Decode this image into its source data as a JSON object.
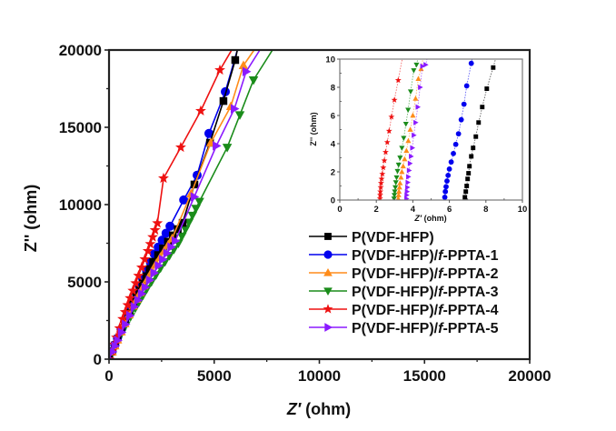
{
  "chart_data": [
    {
      "type": "line",
      "title": "",
      "xlabel_main": "Z",
      "xlabel_prime": "′",
      "xlabel_unit": " (ohm)",
      "ylabel": "Z'' (ohm)",
      "xlim": [
        0,
        20000
      ],
      "ylim": [
        0,
        20000
      ],
      "xticks": [
        0,
        5000,
        10000,
        15000,
        20000
      ],
      "yticks": [
        0,
        5000,
        10000,
        15000,
        20000
      ],
      "xtick_labels": [
        "0",
        "5000",
        "10000",
        "15000",
        "20000"
      ],
      "ytick_labels": [
        "0",
        "5000",
        "10000",
        "15000",
        "20000"
      ],
      "grid": false,
      "legend_position": "center-right",
      "series": [
        {
          "name": "P(VDF-HFP)",
          "name_prefix": "P(VDF-HFP)",
          "name_italic": "",
          "name_suffix": "",
          "color": "#000000",
          "marker": "square",
          "x": [
            0,
            150,
            400,
            750,
            1150,
            1600,
            2100,
            2800,
            3500,
            4060,
            4800,
            5440,
            6000,
            6100
          ],
          "y": [
            0,
            500,
            1300,
            2400,
            3600,
            4900,
            6300,
            7600,
            8820,
            11300,
            14000,
            16700,
            19350,
            20000
          ]
        },
        {
          "name": "P(VDF-HFP)/f-PPTA-1",
          "name_prefix": "P(VDF-HFP)/",
          "name_italic": "f",
          "name_suffix": "-PPTA-1",
          "color": "#0000ee",
          "marker": "circle",
          "x": [
            0,
            150,
            400,
            750,
            1150,
            1600,
            2150,
            2900,
            3550,
            4190,
            4750,
            5530,
            6090
          ],
          "y": [
            0,
            500,
            1350,
            2500,
            3800,
            5200,
            6800,
            8600,
            10300,
            11900,
            14600,
            17300,
            19940
          ]
        },
        {
          "name": "P(VDF-HFP)/f-PPTA-2",
          "name_prefix": "P(VDF-HFP)/",
          "name_italic": "f",
          "name_suffix": "-PPTA-2",
          "color": "#ff8c1a",
          "marker": "triangle-up",
          "x": [
            0,
            150,
            400,
            750,
            1150,
            1650,
            2250,
            3000,
            3900,
            4840,
            5790,
            6390,
            6900
          ],
          "y": [
            0,
            480,
            1250,
            2300,
            3450,
            4750,
            6200,
            7800,
            10700,
            14000,
            16350,
            19000,
            20000
          ]
        },
        {
          "name": "P(VDF-HFP)/f-PPTA-3",
          "name_prefix": "P(VDF-HFP)/",
          "name_italic": "f",
          "name_suffix": "-PPTA-3",
          "color": "#1a8c1a",
          "marker": "triangle-down",
          "x": [
            0,
            160,
            420,
            800,
            1250,
            1800,
            2450,
            3300,
            4300,
            5620,
            6220,
            6870,
            7770
          ],
          "y": [
            0,
            450,
            1200,
            2200,
            3300,
            4550,
            5900,
            7500,
            10200,
            13700,
            15800,
            18060,
            20000
          ]
        },
        {
          "name": "P(VDF-HFP)/f-PPTA-4",
          "name_prefix": "P(VDF-HFP)/",
          "name_italic": "f",
          "name_suffix": "-PPTA-4",
          "color": "#ee1111",
          "marker": "star",
          "x": [
            0,
            130,
            350,
            650,
            1000,
            1400,
            1850,
            2300,
            2590,
            3410,
            4360,
            5270,
            5830
          ],
          "y": [
            0,
            500,
            1400,
            2600,
            3950,
            5400,
            7000,
            8800,
            11700,
            13700,
            16060,
            18700,
            20000
          ]
        },
        {
          "name": "P(VDF-HFP)/f-PPTA-5",
          "name_prefix": "P(VDF-HFP)/",
          "name_italic": "f",
          "name_suffix": "-PPTA-5",
          "color": "#8b1aff",
          "marker": "triangle-right",
          "x": [
            0,
            155,
            410,
            780,
            1200,
            1720,
            2350,
            3150,
            4050,
            5100,
            5960,
            6520,
            7170
          ],
          "y": [
            0,
            470,
            1220,
            2250,
            3400,
            4650,
            6050,
            7650,
            10500,
            13800,
            16200,
            18600,
            20000
          ]
        }
      ]
    },
    {
      "type": "scatter",
      "title": "inset",
      "xlabel_main": "Z",
      "xlabel_prime": "′",
      "xlabel_unit": " (ohm)",
      "ylabel": "Z'' (ohm)",
      "xlim": [
        0,
        10
      ],
      "ylim": [
        0,
        10
      ],
      "xticks": [
        0,
        2,
        4,
        6,
        8,
        10
      ],
      "yticks": [
        0,
        2,
        4,
        6,
        8,
        10
      ],
      "xtick_labels": [
        "0",
        "2",
        "4",
        "6",
        "8",
        "10"
      ],
      "ytick_labels": [
        "0",
        "2",
        "4",
        "6",
        "8",
        "10"
      ],
      "grid": false,
      "series": [
        {
          "name": "P(VDF-HFP)",
          "color": "#000000",
          "marker": "square",
          "x": [
            6.85,
            6.9,
            6.95,
            7.0,
            7.05,
            7.1,
            7.2,
            7.3,
            7.45,
            7.6,
            7.8,
            8.05,
            8.4
          ],
          "y": [
            0.2,
            0.6,
            1.0,
            1.5,
            1.9,
            2.4,
            3.1,
            3.7,
            4.5,
            5.5,
            6.6,
            7.9,
            9.4
          ]
        },
        {
          "name": "P(VDF-HFP)/f-PPTA-1",
          "color": "#0000ee",
          "marker": "circle",
          "x": [
            5.75,
            5.78,
            5.82,
            5.87,
            5.93,
            6.0,
            6.1,
            6.22,
            6.35,
            6.5,
            6.65,
            6.8,
            6.95,
            7.2
          ],
          "y": [
            0.2,
            0.6,
            0.95,
            1.35,
            1.75,
            2.2,
            2.7,
            3.3,
            3.95,
            4.7,
            5.7,
            6.8,
            8.1,
            9.7
          ]
        },
        {
          "name": "P(VDF-HFP)/f-PPTA-2",
          "color": "#ff8c1a",
          "marker": "triangle-up",
          "x": [
            3.2,
            3.22,
            3.24,
            3.27,
            3.3,
            3.35,
            3.4,
            3.47,
            3.55,
            3.65,
            3.75,
            3.86,
            4.0,
            4.15,
            4.3,
            4.45
          ],
          "y": [
            0.1,
            0.35,
            0.6,
            0.9,
            1.2,
            1.6,
            2.0,
            2.4,
            2.9,
            3.5,
            4.2,
            5.0,
            6.0,
            7.2,
            8.6,
            9.3
          ]
        },
        {
          "name": "P(VDF-HFP)/f-PPTA-3",
          "color": "#1a8c1a",
          "marker": "triangle-down",
          "x": [
            2.97,
            2.99,
            3.01,
            3.04,
            3.07,
            3.11,
            3.16,
            3.22,
            3.3,
            3.4,
            3.5,
            3.62,
            3.74,
            3.88,
            4.05,
            4.2
          ],
          "y": [
            0.1,
            0.35,
            0.6,
            0.9,
            1.25,
            1.6,
            2.05,
            2.5,
            3.0,
            3.7,
            4.4,
            5.4,
            6.4,
            7.7,
            9.2,
            9.6
          ]
        },
        {
          "name": "P(VDF-HFP)/f-PPTA-4",
          "color": "#ee1111",
          "marker": "star",
          "x": [
            2.2,
            2.21,
            2.22,
            2.24,
            2.26,
            2.29,
            2.33,
            2.38,
            2.44,
            2.51,
            2.6,
            2.7,
            2.83,
            2.99,
            3.2
          ],
          "y": [
            0.1,
            0.35,
            0.6,
            0.9,
            1.2,
            1.5,
            1.85,
            2.3,
            2.8,
            3.4,
            4.1,
            4.9,
            5.9,
            7.1,
            8.5
          ]
        },
        {
          "name": "P(VDF-HFP)/f-PPTA-5",
          "color": "#8b1aff",
          "marker": "triangle-right",
          "x": [
            3.65,
            3.66,
            3.68,
            3.7,
            3.72,
            3.75,
            3.79,
            3.84,
            3.9,
            3.97,
            4.05,
            4.15,
            4.27,
            4.4,
            4.52,
            4.7
          ],
          "y": [
            0.1,
            0.35,
            0.6,
            0.9,
            1.25,
            1.65,
            2.1,
            2.6,
            3.1,
            3.7,
            4.6,
            5.5,
            6.6,
            8.0,
            9.5,
            9.6
          ]
        }
      ]
    }
  ]
}
